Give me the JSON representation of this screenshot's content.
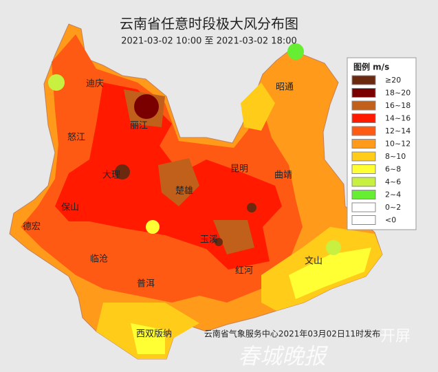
{
  "title": "云南省任意时段极大风分布图",
  "subtitle": "2021-03-02 10:00 至 2021-03-02 18:00",
  "legend": {
    "title": "图例 m/s",
    "items": [
      {
        "label": "≥20",
        "color": "#6b2a10"
      },
      {
        "label": "18~20",
        "color": "#7a0000"
      },
      {
        "label": "16~18",
        "color": "#c0601a"
      },
      {
        "label": "14~16",
        "color": "#ff1a00"
      },
      {
        "label": "12~14",
        "color": "#ff5a14"
      },
      {
        "label": "10~12",
        "color": "#ff9a1a"
      },
      {
        "label": "8~10",
        "color": "#ffcc1a"
      },
      {
        "label": "6~8",
        "color": "#ffff33"
      },
      {
        "label": "4~6",
        "color": "#c8f040"
      },
      {
        "label": "2~4",
        "color": "#66ee33"
      },
      {
        "label": "0~2",
        "color": "#ffffff"
      },
      {
        "label": "<0",
        "color": "#ffffff"
      }
    ]
  },
  "cities": [
    "迪庆",
    "丽江",
    "怒江",
    "大理",
    "保山",
    "德宏",
    "临沧",
    "普洱",
    "西双版纳",
    "楚雄",
    "昆明",
    "玉溪",
    "红河",
    "文山",
    "曲靖",
    "昭通"
  ],
  "footer": "云南省气象服务中心2021年03月02日11时发布",
  "watermark": [
    "春城晚报",
    "开屏"
  ]
}
